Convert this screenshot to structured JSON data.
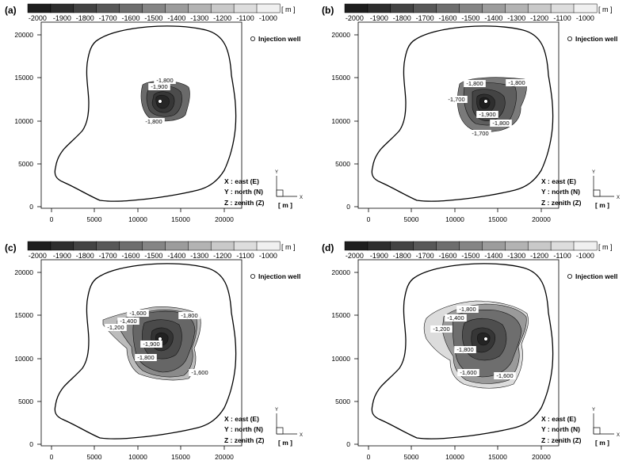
{
  "colorbar": {
    "labels": [
      "-2000",
      "-1900",
      "-1800",
      "-1700",
      "-1600",
      "-1500",
      "-1400",
      "-1300",
      "-1200",
      "-1100",
      "-1000"
    ],
    "unit": "[ m ]",
    "colors": [
      "#1e1e1e",
      "#2e2e2e",
      "#434343",
      "#585858",
      "#6e6e6e",
      "#858585",
      "#9c9c9c",
      "#b3b3b3",
      "#c9c9c9",
      "#dddddd",
      "#f0f0f0"
    ]
  },
  "x_ticks": [
    "0",
    "5000",
    "10000",
    "15000",
    "20000"
  ],
  "y_ticks": [
    "20000",
    "15000",
    "10000",
    "5000",
    "0"
  ],
  "legend": {
    "well_label": "Injection well"
  },
  "axis_notes": {
    "x": "X : east (E)",
    "y": "Y : north (N)",
    "z": "Z : zenith (Z)"
  },
  "triad": {
    "y": "Y",
    "x": "X",
    "unit": "[ m ]"
  },
  "panels": [
    {
      "letter": "(a)",
      "labels": [
        "-1,800",
        "-1,900",
        "-1,800"
      ]
    },
    {
      "letter": "(b)",
      "labels": [
        "-1,800",
        "-1,800",
        "-1,700",
        "-1,900",
        "-1,800",
        "-1,700"
      ]
    },
    {
      "letter": "(c)",
      "labels": [
        "-1,600",
        "-1,800",
        "-1,400",
        "-1,200",
        "-1,900",
        "-1,800",
        "-1,600"
      ]
    },
    {
      "letter": "(d)",
      "labels": [
        "-1,800",
        "-1,400",
        "-1,200",
        "-1,800",
        "-1,600",
        "-1,600"
      ]
    }
  ]
}
